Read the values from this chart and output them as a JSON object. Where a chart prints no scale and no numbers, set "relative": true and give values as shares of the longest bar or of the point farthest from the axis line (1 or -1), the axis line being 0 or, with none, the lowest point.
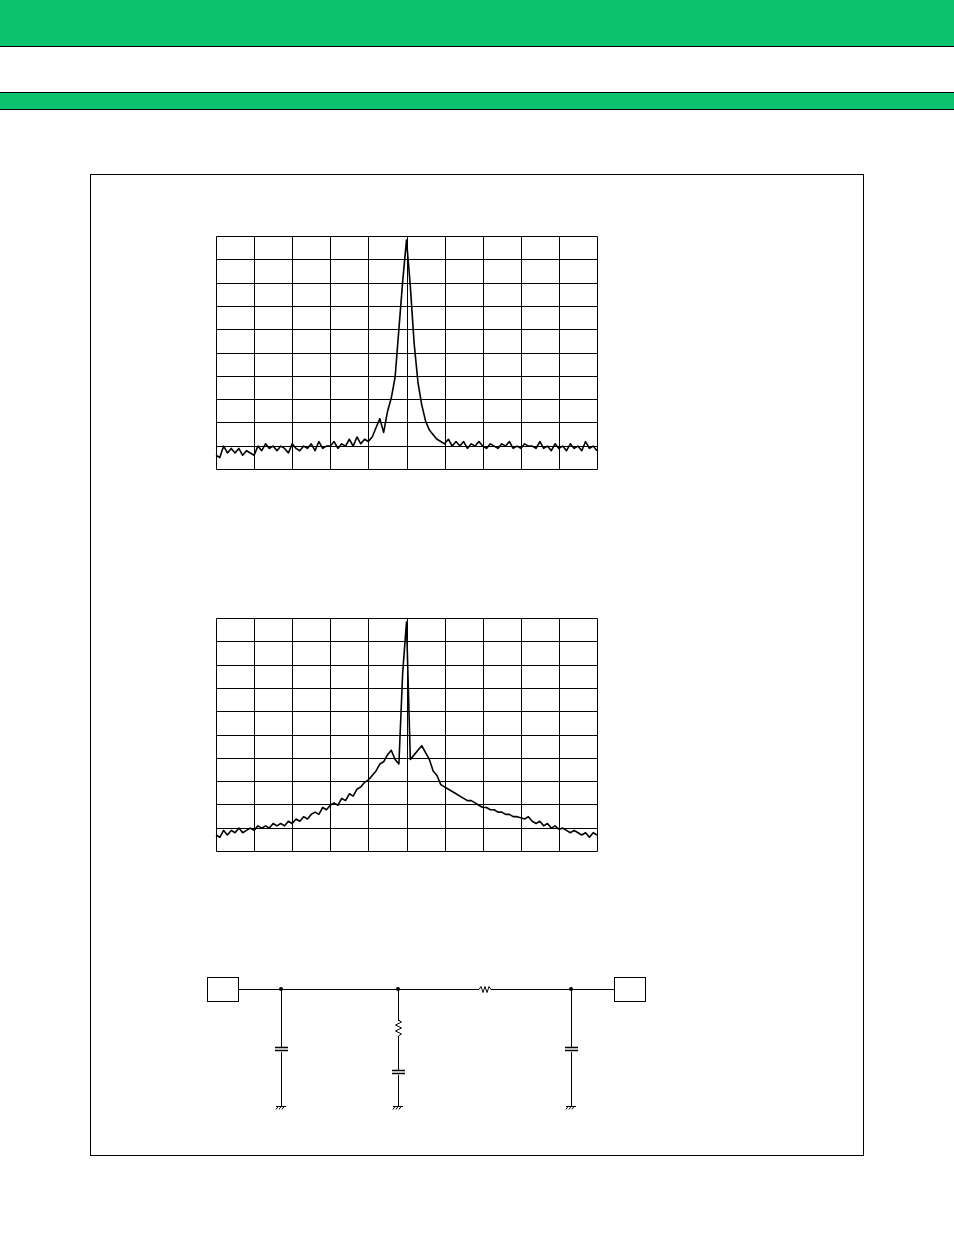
{
  "chart_data": [
    {
      "type": "line",
      "relative": true,
      "grid": true,
      "color": "#000000",
      "categories": [
        null,
        null,
        null,
        null,
        null,
        null,
        null,
        null,
        null,
        null,
        null,
        null,
        null,
        null,
        null,
        null,
        null,
        null,
        null,
        null,
        null,
        null,
        null,
        null,
        null,
        null,
        null,
        null,
        null,
        null,
        null,
        null,
        null,
        null,
        null,
        null,
        null,
        null,
        null,
        null,
        null,
        null,
        null,
        null,
        null,
        null,
        null,
        null,
        null,
        null,
        null,
        null,
        null,
        null,
        null,
        null,
        null,
        null,
        null,
        null,
        null,
        null,
        null,
        null,
        null,
        null,
        null,
        null,
        null,
        null,
        null,
        null,
        null,
        null,
        null,
        null,
        null,
        null,
        null,
        null,
        null,
        null,
        null,
        null,
        null,
        null,
        null,
        null,
        null,
        null,
        null,
        null,
        null,
        null,
        null,
        null,
        null,
        null,
        null,
        null,
        null
      ],
      "values": [
        0.06,
        0.05,
        0.1,
        0.07,
        0.09,
        0.07,
        0.09,
        0.06,
        0.08,
        0.07,
        0.06,
        0.1,
        0.08,
        0.11,
        0.09,
        0.1,
        0.08,
        0.1,
        0.09,
        0.07,
        0.11,
        0.09,
        0.08,
        0.1,
        0.09,
        0.11,
        0.08,
        0.12,
        0.09,
        0.1,
        0.1,
        0.12,
        0.09,
        0.11,
        0.1,
        0.13,
        0.1,
        0.14,
        0.11,
        0.13,
        0.12,
        0.14,
        0.18,
        0.22,
        0.16,
        0.25,
        0.31,
        0.4,
        0.61,
        0.82,
        1,
        0.8,
        0.55,
        0.38,
        0.28,
        0.21,
        0.17,
        0.15,
        0.13,
        0.12,
        0.11,
        0.13,
        0.1,
        0.12,
        0.1,
        0.12,
        0.09,
        0.11,
        0.1,
        0.12,
        0.1,
        0.09,
        0.11,
        0.1,
        0.09,
        0.11,
        0.1,
        0.12,
        0.09,
        0.1,
        0.09,
        0.11,
        0.1,
        0.1,
        0.09,
        0.12,
        0.09,
        0.1,
        0.08,
        0.11,
        0.09,
        0.1,
        0.08,
        0.11,
        0.09,
        0.1,
        0.08,
        0.12,
        0.09,
        0.1,
        0.08
      ]
    },
    {
      "type": "line",
      "relative": true,
      "grid": true,
      "color": "#000000",
      "categories": [
        null,
        null,
        null,
        null,
        null,
        null,
        null,
        null,
        null,
        null,
        null,
        null,
        null,
        null,
        null,
        null,
        null,
        null,
        null,
        null,
        null,
        null,
        null,
        null,
        null,
        null,
        null,
        null,
        null,
        null,
        null,
        null,
        null,
        null,
        null,
        null,
        null,
        null,
        null,
        null,
        null,
        null,
        null,
        null,
        null,
        null,
        null,
        null,
        null,
        null,
        null,
        null,
        null,
        null,
        null,
        null,
        null,
        null,
        null,
        null,
        null,
        null,
        null,
        null,
        null,
        null,
        null,
        null,
        null,
        null,
        null,
        null,
        null,
        null,
        null,
        null,
        null,
        null,
        null,
        null,
        null,
        null,
        null,
        null,
        null,
        null,
        null,
        null,
        null,
        null,
        null,
        null,
        null,
        null,
        null,
        null,
        null,
        null,
        null,
        null,
        null
      ],
      "values": [
        0.07,
        0.06,
        0.09,
        0.07,
        0.09,
        0.08,
        0.1,
        0.08,
        0.09,
        0.1,
        0.09,
        0.11,
        0.1,
        0.11,
        0.1,
        0.12,
        0.11,
        0.12,
        0.11,
        0.13,
        0.12,
        0.14,
        0.13,
        0.15,
        0.14,
        0.16,
        0.17,
        0.16,
        0.19,
        0.18,
        0.2,
        0.21,
        0.2,
        0.23,
        0.22,
        0.25,
        0.24,
        0.27,
        0.28,
        0.3,
        0.31,
        0.33,
        0.35,
        0.38,
        0.39,
        0.42,
        0.44,
        0.4,
        0.38,
        0.78,
        1,
        0.4,
        0.42,
        0.44,
        0.46,
        0.43,
        0.4,
        0.35,
        0.33,
        0.29,
        0.28,
        0.27,
        0.26,
        0.25,
        0.24,
        0.23,
        0.22,
        0.22,
        0.21,
        0.2,
        0.19,
        0.19,
        0.18,
        0.18,
        0.17,
        0.17,
        0.16,
        0.16,
        0.15,
        0.15,
        0.145,
        0.14,
        0.15,
        0.13,
        0.12,
        0.13,
        0.11,
        0.12,
        0.1,
        0.11,
        0.095,
        0.1,
        0.09,
        0.08,
        0.09,
        0.08,
        0.07,
        0.08,
        0.06,
        0.08,
        0.07
      ]
    }
  ]
}
